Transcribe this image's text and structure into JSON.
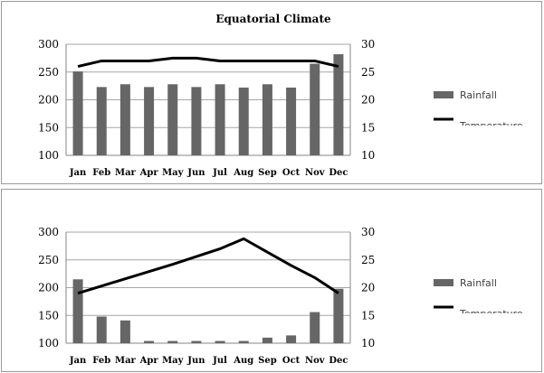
{
  "chart_data": [
    {
      "type": "bar",
      "title": "Equatorial Climate",
      "categories": [
        "Jan",
        "Feb",
        "Mar",
        "Apr",
        "May",
        "Jun",
        "Jul",
        "Aug",
        "Sep",
        "Oct",
        "Nov",
        "Dec"
      ],
      "series": [
        {
          "name": "Rainfall",
          "type": "bar",
          "axis": "left",
          "color": "#666666",
          "values": [
            251,
            223,
            228,
            223,
            228,
            223,
            228,
            222,
            228,
            222,
            265,
            282
          ]
        },
        {
          "name": "Temperature",
          "type": "line",
          "axis": "right",
          "color": "#000000",
          "values": [
            26,
            27,
            27,
            27,
            27.5,
            27.5,
            27,
            27,
            27,
            27,
            27,
            26
          ]
        }
      ],
      "ylim": [
        100,
        300
      ],
      "y2lim": [
        10,
        30
      ],
      "yticks": [
        100,
        150,
        200,
        250,
        300
      ],
      "y2ticks": [
        10,
        15,
        20,
        25,
        30
      ],
      "grid": true,
      "legend": "right"
    },
    {
      "type": "bar",
      "title": "",
      "categories": [
        "Jan",
        "Feb",
        "Mar",
        "Apr",
        "May",
        "Jun",
        "Jul",
        "Aug",
        "Sep",
        "Oct",
        "Nov",
        "Dec"
      ],
      "series": [
        {
          "name": "Rainfall",
          "type": "bar",
          "axis": "left",
          "color": "#666666",
          "values": [
            215,
            148,
            141,
            104,
            104,
            104,
            104,
            104,
            110,
            114,
            156,
            198
          ]
        },
        {
          "name": "Temperature",
          "type": "line",
          "axis": "right",
          "color": "#000000",
          "values": [
            19,
            20.3,
            21.6,
            22.9,
            24.2,
            25.6,
            27,
            28.8,
            26.4,
            24,
            21.8,
            19
          ]
        }
      ],
      "ylim": [
        100,
        300
      ],
      "y2lim": [
        10,
        30
      ],
      "yticks": [
        100,
        150,
        200,
        250,
        300
      ],
      "y2ticks": [
        10,
        15,
        20,
        25,
        30
      ],
      "grid": true,
      "legend": "right"
    }
  ]
}
